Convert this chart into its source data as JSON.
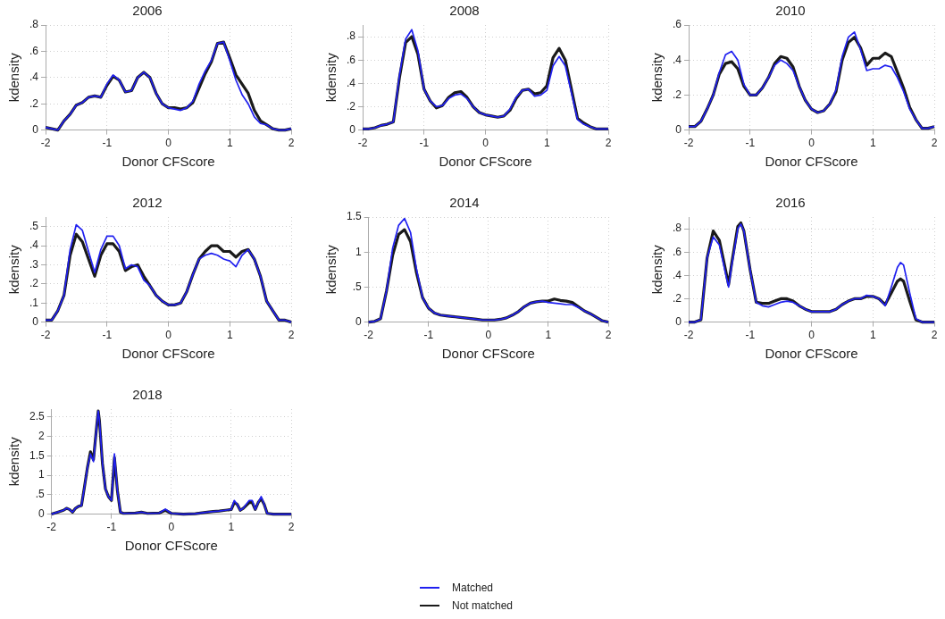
{
  "chart_data": [
    {
      "type": "line",
      "title": "2006",
      "xlabel": "Donor CFScore",
      "ylabel": "kdensity",
      "legend": "bottom",
      "grid": true,
      "x": [
        -2,
        -1.9,
        -1.8,
        -1.7,
        -1.6,
        -1.5,
        -1.4,
        -1.3,
        -1.2,
        -1.1,
        -1,
        -0.9,
        -0.8,
        -0.7,
        -0.6,
        -0.5,
        -0.4,
        -0.3,
        -0.2,
        -0.1,
        0,
        0.1,
        0.2,
        0.3,
        0.4,
        0.5,
        0.6,
        0.7,
        0.8,
        0.9,
        1,
        1.1,
        1.2,
        1.3,
        1.4,
        1.5,
        1.6,
        1.7,
        1.8,
        1.9,
        2
      ],
      "xlim": [
        -2,
        2
      ],
      "xticks": [
        -2,
        -1,
        0,
        1,
        2
      ],
      "ylim": [
        0,
        0.8
      ],
      "yticks": [
        0,
        {
          "value": 0.2,
          "label": ".2"
        },
        {
          "value": 0.4,
          "label": ".4"
        },
        {
          "value": 0.6,
          "label": ".6"
        },
        {
          "value": 0.8,
          "label": ".8"
        }
      ],
      "series": [
        {
          "name": "Matched",
          "color": "#2020f0",
          "values": [
            0.02,
            0.01,
            0,
            0.07,
            0.12,
            0.19,
            0.21,
            0.25,
            0.26,
            0.25,
            0.35,
            0.42,
            0.38,
            0.29,
            0.3,
            0.4,
            0.44,
            0.4,
            0.28,
            0.2,
            0.17,
            0.16,
            0.15,
            0.17,
            0.22,
            0.35,
            0.45,
            0.53,
            0.66,
            0.67,
            0.53,
            0.38,
            0.27,
            0.2,
            0.1,
            0.05,
            0.04,
            0.01,
            0,
            0,
            0.01
          ]
        },
        {
          "name": "Not matched",
          "color": "#1a1a1a",
          "values": [
            0.02,
            0.01,
            0,
            0.07,
            0.12,
            0.19,
            0.21,
            0.25,
            0.26,
            0.25,
            0.34,
            0.41,
            0.38,
            0.29,
            0.3,
            0.4,
            0.44,
            0.4,
            0.28,
            0.2,
            0.17,
            0.17,
            0.16,
            0.17,
            0.21,
            0.32,
            0.43,
            0.52,
            0.66,
            0.67,
            0.55,
            0.42,
            0.35,
            0.28,
            0.15,
            0.07,
            0.04,
            0.01,
            0,
            0,
            0.01
          ]
        }
      ]
    },
    {
      "type": "line",
      "title": "2008",
      "xlabel": "Donor CFScore",
      "ylabel": "kdensity",
      "grid": true,
      "x": [
        -2,
        -1.9,
        -1.8,
        -1.7,
        -1.6,
        -1.5,
        -1.4,
        -1.3,
        -1.2,
        -1.1,
        -1,
        -0.9,
        -0.8,
        -0.7,
        -0.6,
        -0.5,
        -0.4,
        -0.3,
        -0.2,
        -0.1,
        0,
        0.1,
        0.2,
        0.3,
        0.4,
        0.5,
        0.6,
        0.7,
        0.8,
        0.9,
        1,
        1.1,
        1.2,
        1.3,
        1.4,
        1.5,
        1.6,
        1.7,
        1.8,
        1.9,
        2
      ],
      "xlim": [
        -2,
        2
      ],
      "xticks": [
        -2,
        -1,
        0,
        1,
        2
      ],
      "ylim": [
        0,
        0.9
      ],
      "yticks": [
        0,
        {
          "value": 0.2,
          "label": ".2"
        },
        {
          "value": 0.4,
          "label": ".4"
        },
        {
          "value": 0.6,
          "label": ".6"
        },
        {
          "value": 0.8,
          "label": ".8"
        }
      ],
      "series": [
        {
          "color": "#2020f0",
          "values": [
            0.01,
            0.01,
            0.02,
            0.04,
            0.05,
            0.07,
            0.47,
            0.78,
            0.86,
            0.68,
            0.35,
            0.25,
            0.2,
            0.21,
            0.27,
            0.3,
            0.31,
            0.27,
            0.2,
            0.15,
            0.13,
            0.12,
            0.11,
            0.12,
            0.18,
            0.28,
            0.34,
            0.35,
            0.29,
            0.3,
            0.34,
            0.55,
            0.63,
            0.55,
            0.32,
            0.09,
            0.05,
            0.03,
            0.01,
            0.01,
            0.01
          ]
        },
        {
          "color": "#1a1a1a",
          "values": [
            0.01,
            0.01,
            0.02,
            0.04,
            0.05,
            0.07,
            0.45,
            0.75,
            0.8,
            0.65,
            0.35,
            0.25,
            0.19,
            0.21,
            0.28,
            0.32,
            0.33,
            0.28,
            0.2,
            0.15,
            0.13,
            0.12,
            0.11,
            0.12,
            0.17,
            0.27,
            0.34,
            0.35,
            0.31,
            0.32,
            0.38,
            0.62,
            0.7,
            0.6,
            0.35,
            0.1,
            0.06,
            0.03,
            0.01,
            0.01,
            0.01
          ]
        }
      ]
    },
    {
      "type": "line",
      "title": "2010",
      "xlabel": "Donor CFScore",
      "ylabel": "kdensity",
      "grid": true,
      "x": [
        -2,
        -1.9,
        -1.8,
        -1.7,
        -1.6,
        -1.5,
        -1.4,
        -1.3,
        -1.2,
        -1.1,
        -1,
        -0.9,
        -0.8,
        -0.7,
        -0.6,
        -0.5,
        -0.4,
        -0.3,
        -0.2,
        -0.1,
        0,
        0.1,
        0.2,
        0.3,
        0.4,
        0.5,
        0.6,
        0.7,
        0.8,
        0.9,
        1,
        1.1,
        1.2,
        1.3,
        1.4,
        1.5,
        1.6,
        1.7,
        1.8,
        1.9,
        2
      ],
      "xlim": [
        -2,
        2
      ],
      "xticks": [
        -2,
        -1,
        0,
        1,
        2
      ],
      "ylim": [
        0,
        0.6
      ],
      "yticks": [
        0,
        {
          "value": 0.2,
          "label": ".2"
        },
        {
          "value": 0.4,
          "label": ".4"
        },
        {
          "value": 0.6,
          "label": ".6"
        }
      ],
      "series": [
        {
          "color": "#2020f0",
          "values": [
            0.02,
            0.02,
            0.05,
            0.12,
            0.2,
            0.33,
            0.43,
            0.45,
            0.4,
            0.26,
            0.2,
            0.2,
            0.24,
            0.3,
            0.37,
            0.4,
            0.38,
            0.34,
            0.25,
            0.17,
            0.12,
            0.1,
            0.11,
            0.15,
            0.23,
            0.42,
            0.53,
            0.56,
            0.46,
            0.34,
            0.35,
            0.35,
            0.37,
            0.36,
            0.3,
            0.22,
            0.12,
            0.06,
            0.01,
            0.01,
            0.02
          ]
        },
        {
          "color": "#1a1a1a",
          "values": [
            0.02,
            0.02,
            0.05,
            0.12,
            0.2,
            0.32,
            0.38,
            0.39,
            0.35,
            0.25,
            0.2,
            0.2,
            0.24,
            0.3,
            0.38,
            0.42,
            0.41,
            0.36,
            0.25,
            0.17,
            0.12,
            0.1,
            0.11,
            0.15,
            0.22,
            0.4,
            0.5,
            0.53,
            0.47,
            0.37,
            0.41,
            0.41,
            0.44,
            0.42,
            0.33,
            0.24,
            0.13,
            0.06,
            0.01,
            0.01,
            0.02
          ]
        }
      ]
    },
    {
      "type": "line",
      "title": "2012",
      "xlabel": "Donor CFScore",
      "ylabel": "kdensity",
      "grid": true,
      "x": [
        -2,
        -1.9,
        -1.8,
        -1.7,
        -1.6,
        -1.5,
        -1.4,
        -1.3,
        -1.2,
        -1.1,
        -1,
        -0.9,
        -0.8,
        -0.7,
        -0.6,
        -0.5,
        -0.4,
        -0.3,
        -0.2,
        -0.1,
        0,
        0.1,
        0.2,
        0.3,
        0.4,
        0.5,
        0.6,
        0.7,
        0.8,
        0.9,
        1,
        1.1,
        1.2,
        1.3,
        1.4,
        1.5,
        1.6,
        1.7,
        1.8,
        1.9,
        2
      ],
      "xlim": [
        -2,
        2
      ],
      "xticks": [
        -2,
        -1,
        0,
        1,
        2
      ],
      "ylim": [
        0,
        0.55
      ],
      "yticks": [
        0,
        {
          "value": 0.1,
          "label": ".1"
        },
        {
          "value": 0.2,
          "label": ".2"
        },
        {
          "value": 0.3,
          "label": ".3"
        },
        {
          "value": 0.4,
          "label": ".4"
        },
        {
          "value": 0.5,
          "label": ".5"
        }
      ],
      "series": [
        {
          "color": "#2020f0",
          "values": [
            0.01,
            0.01,
            0.06,
            0.14,
            0.38,
            0.51,
            0.48,
            0.37,
            0.26,
            0.38,
            0.45,
            0.45,
            0.4,
            0.28,
            0.3,
            0.29,
            0.22,
            0.19,
            0.14,
            0.11,
            0.09,
            0.09,
            0.1,
            0.16,
            0.25,
            0.33,
            0.35,
            0.36,
            0.35,
            0.33,
            0.32,
            0.29,
            0.35,
            0.38,
            0.33,
            0.24,
            0.11,
            0.06,
            0.01,
            0.01,
            0
          ]
        },
        {
          "color": "#1a1a1a",
          "values": [
            0.01,
            0.01,
            0.06,
            0.14,
            0.35,
            0.46,
            0.42,
            0.33,
            0.24,
            0.35,
            0.41,
            0.41,
            0.37,
            0.27,
            0.29,
            0.3,
            0.24,
            0.19,
            0.14,
            0.11,
            0.09,
            0.09,
            0.1,
            0.16,
            0.25,
            0.33,
            0.37,
            0.4,
            0.4,
            0.37,
            0.37,
            0.34,
            0.37,
            0.38,
            0.33,
            0.24,
            0.11,
            0.06,
            0.01,
            0.01,
            0
          ]
        }
      ]
    },
    {
      "type": "line",
      "title": "2014",
      "xlabel": "Donor CFScore",
      "ylabel": "kdensity",
      "grid": true,
      "x": [
        -2,
        -1.9,
        -1.8,
        -1.7,
        -1.6,
        -1.5,
        -1.4,
        -1.3,
        -1.2,
        -1.1,
        -1,
        -0.9,
        -0.8,
        -0.7,
        -0.6,
        -0.5,
        -0.4,
        -0.3,
        -0.2,
        -0.1,
        0,
        0.1,
        0.2,
        0.3,
        0.4,
        0.5,
        0.6,
        0.7,
        0.8,
        0.9,
        1,
        1.1,
        1.2,
        1.3,
        1.4,
        1.5,
        1.6,
        1.7,
        1.8,
        1.9,
        2
      ],
      "xlim": [
        -2,
        2
      ],
      "xticks": [
        -2,
        -1,
        0,
        1,
        2
      ],
      "ylim": [
        0,
        1.5
      ],
      "yticks": [
        0,
        {
          "value": 0.5,
          "label": ".5"
        },
        1,
        1.5
      ],
      "series": [
        {
          "color": "#2020f0",
          "values": [
            0,
            0.01,
            0.05,
            0.45,
            1.05,
            1.38,
            1.48,
            1.28,
            0.75,
            0.35,
            0.2,
            0.13,
            0.1,
            0.09,
            0.08,
            0.07,
            0.06,
            0.05,
            0.04,
            0.03,
            0.03,
            0.03,
            0.04,
            0.06,
            0.1,
            0.15,
            0.22,
            0.27,
            0.29,
            0.3,
            0.28,
            0.27,
            0.26,
            0.25,
            0.25,
            0.21,
            0.16,
            0.12,
            0.07,
            0.02,
            0
          ]
        },
        {
          "color": "#1a1a1a",
          "values": [
            0,
            0.01,
            0.05,
            0.45,
            0.95,
            1.25,
            1.32,
            1.15,
            0.7,
            0.35,
            0.2,
            0.13,
            0.1,
            0.09,
            0.08,
            0.07,
            0.06,
            0.05,
            0.04,
            0.03,
            0.03,
            0.03,
            0.04,
            0.06,
            0.1,
            0.15,
            0.22,
            0.27,
            0.29,
            0.3,
            0.3,
            0.33,
            0.31,
            0.3,
            0.28,
            0.22,
            0.16,
            0.12,
            0.07,
            0.02,
            0
          ]
        }
      ]
    },
    {
      "type": "line",
      "title": "2016",
      "xlabel": "Donor CFScore",
      "ylabel": "kdensity",
      "grid": true,
      "x": [
        -2,
        -1.9,
        -1.8,
        -1.7,
        -1.6,
        -1.5,
        -1.4,
        -1.35,
        -1.3,
        -1.2,
        -1.15,
        -1.1,
        -1,
        -0.9,
        -0.8,
        -0.7,
        -0.6,
        -0.5,
        -0.4,
        -0.3,
        -0.2,
        -0.1,
        0,
        0.1,
        0.2,
        0.3,
        0.4,
        0.5,
        0.6,
        0.7,
        0.8,
        0.9,
        1,
        1.1,
        1.2,
        1.3,
        1.4,
        1.45,
        1.5,
        1.6,
        1.7,
        1.8,
        1.9,
        2
      ],
      "xlim": [
        -2,
        2
      ],
      "xticks": [
        -2,
        -1,
        0,
        1,
        2
      ],
      "ylim": [
        0,
        0.9
      ],
      "yticks": [
        0,
        {
          "value": 0.2,
          "label": ".2"
        },
        {
          "value": 0.4,
          "label": ".4"
        },
        {
          "value": 0.6,
          "label": ".6"
        },
        {
          "value": 0.8,
          "label": ".8"
        }
      ],
      "series": [
        {
          "color": "#2020f0",
          "values": [
            0,
            0,
            0.02,
            0.55,
            0.73,
            0.66,
            0.42,
            0.3,
            0.48,
            0.8,
            0.84,
            0.78,
            0.45,
            0.17,
            0.14,
            0.13,
            0.15,
            0.17,
            0.18,
            0.17,
            0.14,
            0.11,
            0.09,
            0.09,
            0.09,
            0.09,
            0.11,
            0.15,
            0.18,
            0.2,
            0.2,
            0.23,
            0.22,
            0.2,
            0.14,
            0.3,
            0.47,
            0.51,
            0.49,
            0.25,
            0.03,
            0,
            0,
            0
          ]
        },
        {
          "color": "#1a1a1a",
          "values": [
            0,
            0,
            0.02,
            0.55,
            0.78,
            0.7,
            0.45,
            0.32,
            0.5,
            0.82,
            0.85,
            0.78,
            0.45,
            0.17,
            0.16,
            0.16,
            0.18,
            0.2,
            0.2,
            0.18,
            0.14,
            0.11,
            0.09,
            0.09,
            0.09,
            0.09,
            0.11,
            0.15,
            0.18,
            0.2,
            0.2,
            0.22,
            0.22,
            0.2,
            0.15,
            0.25,
            0.35,
            0.37,
            0.35,
            0.18,
            0.02,
            0,
            0,
            0
          ]
        }
      ]
    },
    {
      "type": "line",
      "title": "2018",
      "xlabel": "Donor CFScore",
      "ylabel": "kdensity",
      "grid": true,
      "x": [
        -2,
        -1.9,
        -1.8,
        -1.75,
        -1.7,
        -1.65,
        -1.6,
        -1.55,
        -1.5,
        -1.45,
        -1.4,
        -1.35,
        -1.3,
        -1.25,
        -1.22,
        -1.2,
        -1.15,
        -1.1,
        -1.05,
        -1,
        -0.97,
        -0.95,
        -0.9,
        -0.85,
        -0.8,
        -0.6,
        -0.5,
        -0.4,
        -0.2,
        -0.1,
        0,
        0.2,
        0.4,
        0.6,
        0.7,
        0.8,
        0.9,
        1,
        1.05,
        1.1,
        1.15,
        1.2,
        1.3,
        1.35,
        1.4,
        1.45,
        1.5,
        1.55,
        1.6,
        1.7,
        1.8,
        2
      ],
      "xlim": [
        -2,
        2
      ],
      "xticks": [
        -2,
        -1,
        0,
        1,
        2
      ],
      "ylim": [
        0,
        2.7
      ],
      "yticks": [
        0,
        {
          "value": 0.5,
          "label": ".5"
        },
        1,
        1.5,
        2,
        2.5
      ],
      "series": [
        {
          "color": "#2020f0",
          "values": [
            0,
            0.05,
            0.1,
            0.15,
            0.12,
            0.05,
            0.15,
            0.2,
            0.22,
            0.7,
            1.2,
            1.55,
            1.35,
            2.2,
            2.65,
            2.4,
            1.3,
            0.65,
            0.45,
            0.35,
            1,
            1.55,
            0.6,
            0.05,
            0.02,
            0.03,
            0.05,
            0.02,
            0.03,
            0.13,
            0.02,
            0,
            0.01,
            0.05,
            0.07,
            0.08,
            0.1,
            0.12,
            0.35,
            0.25,
            0.1,
            0.15,
            0.35,
            0.35,
            0.12,
            0.3,
            0.45,
            0.25,
            0.02,
            0,
            0,
            0
          ]
        },
        {
          "color": "#1a1a1a",
          "values": [
            0,
            0.05,
            0.1,
            0.15,
            0.12,
            0.05,
            0.15,
            0.2,
            0.22,
            0.7,
            1.2,
            1.6,
            1.4,
            2.2,
            2.65,
            2.4,
            1.3,
            0.65,
            0.45,
            0.35,
            1,
            1.45,
            0.6,
            0.05,
            0.02,
            0.03,
            0.05,
            0.02,
            0.03,
            0.1,
            0.02,
            0,
            0.01,
            0.05,
            0.07,
            0.08,
            0.1,
            0.12,
            0.3,
            0.25,
            0.1,
            0.15,
            0.3,
            0.3,
            0.12,
            0.3,
            0.4,
            0.25,
            0.02,
            0,
            0,
            0
          ]
        }
      ]
    }
  ]
}
